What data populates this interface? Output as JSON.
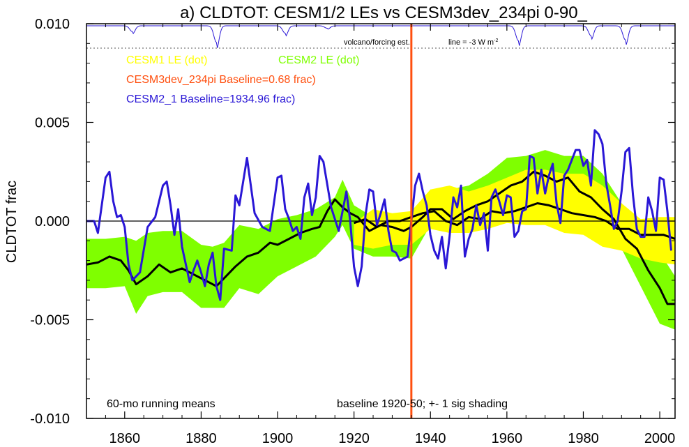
{
  "chart_data": {
    "type": "line",
    "title": "a) CLDTOT: CESM1/2 LEs vs CESM3dev_234pi 0-90_",
    "ylabel": "CLDTOT frac",
    "xlim": [
      1850,
      2004
    ],
    "ylim": [
      -0.01,
      0.01
    ],
    "x_ticks": [
      1860,
      1880,
      1900,
      1920,
      1940,
      1960,
      1980,
      2000
    ],
    "y_ticks": [
      -0.01,
      -0.005,
      0.0,
      0.005,
      0.01
    ],
    "y_tick_labels": [
      "-0.010",
      "-0.005",
      "0.000",
      "0.005",
      "0.010"
    ],
    "x_tick_labels": [
      "1860",
      "1880",
      "1900",
      "1920",
      "1940",
      "1960",
      "1980",
      "2000"
    ],
    "reference_line_y": 0.0,
    "baseline_year": 1935,
    "legend": {
      "cesm1": "CESM1 LE (dot)",
      "cesm2": "CESM2 LE (dot)",
      "cesm3": "CESM3dev_234pi Baseline=0.68 frac)",
      "cesm21": "CESM2_1 Baseline=1934.96 frac)",
      "placement": "top-left"
    },
    "volcano_label": "volcano/forcing est.",
    "volcano_line_label": "line = -3 W m",
    "volcano_line_label_sup": "-2",
    "annotations": {
      "running_means": "60-mo running means",
      "baseline_note": "baseline 1920-50; +- 1 sig shading"
    },
    "colors": {
      "cesm1": "#ffff00",
      "cesm2": "#7fff00",
      "cesm3": "#ff4f0f",
      "cesm21": "#2a17d6",
      "means": "#000000"
    },
    "series": [
      {
        "name": "CESM2 LE (dot)",
        "kind": "band",
        "x": [
          1850,
          1855,
          1860,
          1863,
          1866,
          1870,
          1875,
          1880,
          1883,
          1886,
          1890,
          1895,
          1900,
          1905,
          1910,
          1915,
          1917,
          1920,
          1925,
          1930,
          1935,
          1940,
          1945,
          1950,
          1955,
          1960,
          1965,
          1970,
          1975,
          1980,
          1985,
          1990,
          1995,
          2000,
          2004
        ],
        "upper": [
          -0.0009,
          -0.0009,
          -0.0008,
          -0.001,
          -0.0006,
          -0.0005,
          -0.0005,
          -0.0012,
          -0.0013,
          -0.0011,
          -0.0002,
          -0.0004,
          0.0001,
          0.0003,
          0.0006,
          0.0012,
          0.0021,
          0.0008,
          0.0002,
          -0.0002,
          -0.0001,
          0.0016,
          0.0016,
          0.0018,
          0.0024,
          0.0032,
          0.0033,
          0.0036,
          0.0033,
          0.0033,
          0.0024,
          0.0009,
          -0.0003,
          -0.0016,
          -0.0028
        ],
        "lower": [
          -0.0034,
          -0.0034,
          -0.0033,
          -0.0047,
          -0.0038,
          -0.0036,
          -0.0036,
          -0.0044,
          -0.0044,
          -0.0044,
          -0.0034,
          -0.0037,
          -0.0028,
          -0.0023,
          -0.0018,
          -0.0008,
          -0.0002,
          -0.0014,
          -0.0018,
          -0.0018,
          -0.0019,
          -0.0002,
          -0.0001,
          0.0004,
          0.0008,
          0.0012,
          0.0013,
          0.0015,
          0.0013,
          0.0013,
          0.0006,
          -0.0014,
          -0.0033,
          -0.0052,
          -0.0055
        ]
      },
      {
        "name": "CESM1 LE (dot)",
        "kind": "band",
        "x": [
          1920,
          1925,
          1930,
          1935,
          1940,
          1945,
          1950,
          1955,
          1960,
          1965,
          1970,
          1975,
          1980,
          1985,
          1990,
          1995,
          2000,
          2004
        ],
        "upper": [
          -0.0001,
          0.0006,
          0.0004,
          0.0005,
          0.0016,
          0.0018,
          0.0015,
          0.0018,
          0.0022,
          0.0026,
          0.0026,
          0.0024,
          0.0024,
          0.0018,
          0.0009,
          0.0001,
          0.0002,
          0.0002
        ],
        "lower": [
          -0.0012,
          -0.0014,
          -0.0012,
          -0.0012,
          -0.0004,
          -0.0006,
          -0.0006,
          -0.0004,
          -0.0001,
          -0.0002,
          -0.0002,
          -0.0006,
          -0.0007,
          -0.0013,
          -0.0015,
          -0.0019,
          -0.0021,
          -0.0022
        ]
      },
      {
        "name": "CESM2 LE mean",
        "kind": "line",
        "x": [
          1850,
          1853,
          1856,
          1859,
          1861,
          1863,
          1866,
          1869,
          1872,
          1875,
          1878,
          1880,
          1882,
          1884,
          1886,
          1889,
          1892,
          1895,
          1898,
          1900,
          1903,
          1906,
          1909,
          1911,
          1913,
          1915,
          1917,
          1919,
          1921,
          1924,
          1927,
          1930,
          1933,
          1935,
          1938,
          1940,
          1943,
          1946,
          1949,
          1952,
          1955,
          1958,
          1961,
          1964,
          1967,
          1970,
          1973,
          1976,
          1979,
          1982,
          1985,
          1988,
          1991,
          1994,
          1997,
          2000,
          2002,
          2004
        ],
        "y": [
          -0.0022,
          -0.0021,
          -0.0018,
          -0.002,
          -0.0025,
          -0.0032,
          -0.0028,
          -0.0022,
          -0.0026,
          -0.0024,
          -0.0027,
          -0.0029,
          -0.0031,
          -0.0033,
          -0.0029,
          -0.0023,
          -0.0018,
          -0.0016,
          -0.0011,
          -0.0012,
          -0.0009,
          -0.0006,
          -0.0004,
          -0.0003,
          0.0005,
          0.0011,
          0.0007,
          0.0004,
          0.0002,
          -0.0005,
          -0.0002,
          -0.0003,
          -0.0005,
          -0.0003,
          0.0002,
          0.0006,
          0.0006,
          0.0001,
          0.0005,
          0.0008,
          0.001,
          0.0014,
          0.0018,
          0.002,
          0.0025,
          0.0023,
          0.002,
          0.0022,
          0.0015,
          0.0012,
          0.0006,
          0.0001,
          -0.0009,
          -0.0014,
          -0.0025,
          -0.0034,
          -0.0042,
          -0.0042
        ]
      },
      {
        "name": "CESM1 LE mean",
        "kind": "line",
        "x": [
          1920,
          1923,
          1926,
          1929,
          1932,
          1935,
          1938,
          1941,
          1944,
          1947,
          1950,
          1953,
          1956,
          1959,
          1962,
          1965,
          1968,
          1971,
          1974,
          1977,
          1980,
          1983,
          1986,
          1989,
          1992,
          1995,
          1998,
          2001,
          2004
        ],
        "y": [
          -0.0001,
          0.0001,
          -0.0003,
          0.0,
          0.0,
          0.0002,
          0.0004,
          0.0005,
          0.0,
          -0.0002,
          0.0002,
          0.0001,
          0.0005,
          0.0004,
          0.0005,
          0.0007,
          0.0009,
          0.0008,
          0.0006,
          0.0004,
          0.0003,
          0.0002,
          0.0,
          -0.0004,
          -0.0004,
          -0.0007,
          -0.0007,
          -0.0007,
          -0.0009
        ]
      },
      {
        "name": "CESM2_1 Baseline=1934.96 frac)",
        "kind": "line",
        "x": [
          1850,
          1852,
          1853,
          1855,
          1856,
          1857,
          1858,
          1859,
          1860,
          1861,
          1862,
          1864,
          1866,
          1868,
          1870,
          1871,
          1872,
          1873,
          1874,
          1875,
          1877,
          1878,
          1879,
          1880,
          1881,
          1882,
          1883,
          1884,
          1885,
          1886,
          1888,
          1889,
          1890,
          1892,
          1894,
          1896,
          1898,
          1900,
          1901,
          1902,
          1903,
          1904,
          1905,
          1906,
          1907,
          1908,
          1909,
          1910,
          1911,
          1912,
          1914,
          1916,
          1918,
          1919,
          1920,
          1921,
          1922,
          1923,
          1924,
          1925,
          1926,
          1927,
          1928,
          1929,
          1930,
          1931,
          1932,
          1934,
          1936,
          1937,
          1938,
          1939,
          1940,
          1941,
          1942,
          1943,
          1944,
          1945,
          1946,
          1947,
          1948,
          1949,
          1950,
          1951,
          1952,
          1953,
          1954,
          1955,
          1956,
          1957,
          1958,
          1959,
          1960,
          1961,
          1962,
          1963,
          1964,
          1965,
          1966,
          1967,
          1968,
          1969,
          1970,
          1971,
          1972,
          1973,
          1974,
          1975,
          1976,
          1977,
          1978,
          1979,
          1980,
          1981,
          1982,
          1983,
          1984,
          1985,
          1986,
          1987,
          1988,
          1989,
          1990,
          1991,
          1992,
          1993,
          1994,
          1995,
          1996,
          1997,
          1998,
          1999,
          2000,
          2001,
          2002,
          2003
        ],
        "y": [
          0.0,
          0.0,
          -0.0006,
          0.0022,
          0.0025,
          0.001,
          0.0002,
          0.0003,
          -0.0003,
          -0.0022,
          -0.003,
          -0.0026,
          -0.0003,
          0.0002,
          0.0018,
          0.002,
          0.0008,
          -0.0007,
          0.0006,
          -0.0013,
          -0.0031,
          -0.0025,
          -0.002,
          -0.0026,
          -0.0033,
          -0.0022,
          -0.0016,
          -0.0033,
          -0.004,
          -0.0014,
          -0.0015,
          0.0013,
          0.0008,
          0.0032,
          0.0004,
          -0.0003,
          -0.0005,
          0.0022,
          0.0023,
          0.0006,
          0.0001,
          -0.0005,
          -0.0003,
          -0.0009,
          0.0012,
          0.0019,
          0.0003,
          0.0012,
          0.0033,
          0.003,
          0.0007,
          -0.0005,
          0.0015,
          0.0,
          -0.0023,
          -0.0033,
          -0.0023,
          0.0003,
          0.0016,
          0.0015,
          -0.0002,
          0.0004,
          0.0011,
          -0.0005,
          -0.0015,
          -0.0016,
          -0.002,
          -0.0018,
          0.0018,
          0.0024,
          0.0015,
          0.0008,
          -0.0007,
          -0.0015,
          -0.0019,
          -0.0008,
          -0.0024,
          -0.0008,
          0.0012,
          0.0007,
          0.0018,
          -0.0018,
          -0.0009,
          -0.0004,
          0.0008,
          -0.0002,
          0.0004,
          -0.0015,
          0.0012,
          0.0016,
          0.001,
          0.0003,
          0.0013,
          0.0012,
          -0.0008,
          -0.0005,
          0.0005,
          0.0006,
          0.0033,
          0.0032,
          0.0014,
          0.0026,
          0.0014,
          0.0023,
          0.0029,
          0.0009,
          -0.0001,
          0.0023,
          0.0026,
          0.0031,
          0.0036,
          0.0036,
          0.0028,
          0.0031,
          0.0018,
          0.0046,
          0.0044,
          0.0039,
          0.0019,
          0.0008,
          -0.0004,
          0.0,
          0.0015,
          0.0035,
          0.0037,
          0.0013,
          -0.0004,
          -0.0008,
          -0.0008,
          0.0012,
          0.0005,
          -0.0005,
          0.0022,
          0.0021,
          0.0005,
          -0.0015
        ]
      }
    ],
    "volcano_dips": [
      {
        "year": 1862,
        "depth": 0.35
      },
      {
        "year": 1884,
        "depth": 1.0
      },
      {
        "year": 1902,
        "depth": 0.45
      },
      {
        "year": 1913,
        "depth": 0.15
      },
      {
        "year": 1963,
        "depth": 0.9
      },
      {
        "year": 1982,
        "depth": 0.6
      },
      {
        "year": 1991,
        "depth": 0.85
      }
    ]
  }
}
